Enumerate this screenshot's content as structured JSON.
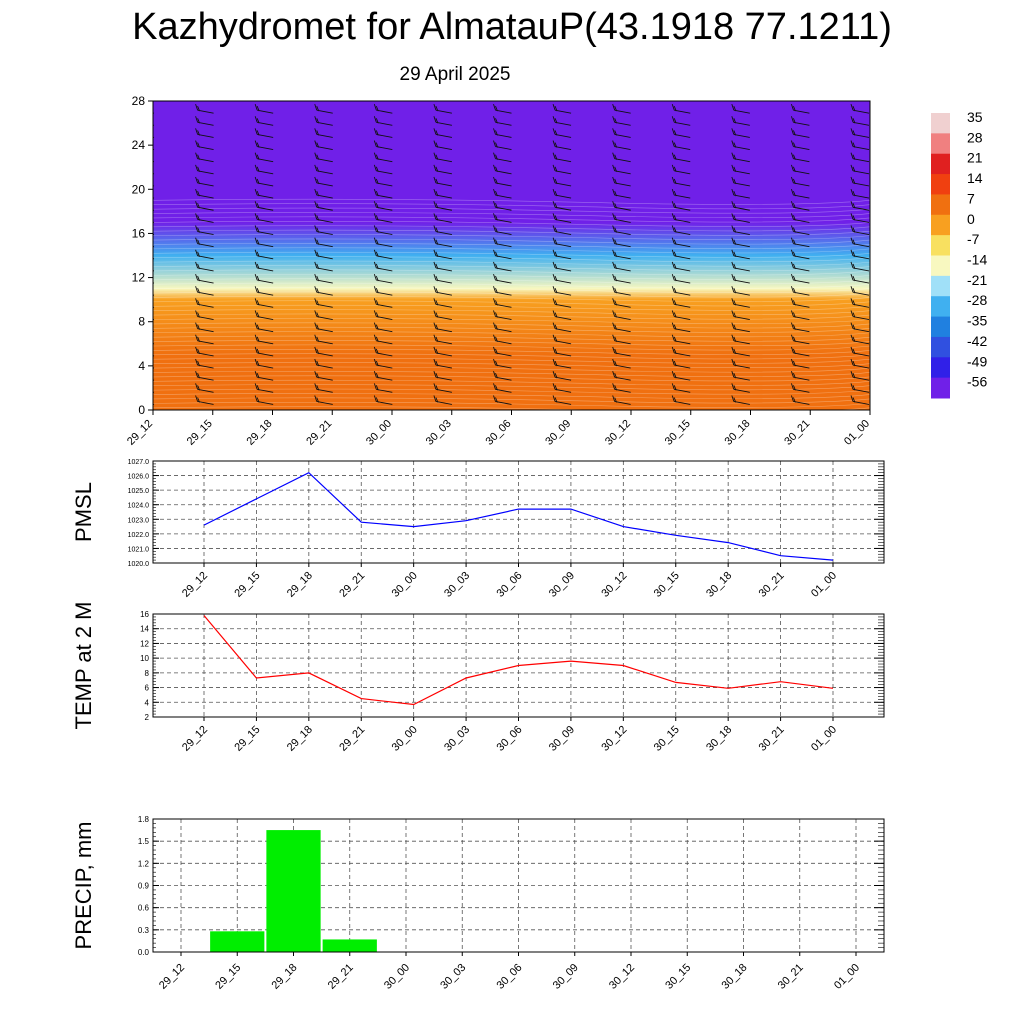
{
  "title": "Kazhydromet for AlmatauP(43.1918 77.1211)",
  "subtitle": "29 April 2025",
  "time_labels": [
    "29_12",
    "29_15",
    "29_18",
    "29_21",
    "30_00",
    "30_03",
    "30_06",
    "30_09",
    "30_12",
    "30_15",
    "30_18",
    "30_21",
    "01_00"
  ],
  "colors": {
    "pmsl_line": "#0000ff",
    "temp_line": "#ff0000",
    "precip_bar": "#00ee00",
    "grid": "#555555"
  },
  "chart_data": [
    {
      "type": "heatmap",
      "name": "vertical cross-section",
      "x": [
        "29_12",
        "29_15",
        "29_18",
        "29_21",
        "30_00",
        "30_03",
        "30_06",
        "30_09",
        "30_12",
        "30_15",
        "30_18",
        "30_21",
        "01_00"
      ],
      "y_ticks": [
        0,
        4,
        8,
        12,
        16,
        20,
        24,
        28
      ],
      "ylim": [
        0,
        28
      ],
      "colorbar": {
        "labels": [
          "35",
          "28",
          "21",
          "14",
          "7",
          "0",
          "-7",
          "-14",
          "-21",
          "-28",
          "-35",
          "-42",
          "-49",
          "-56"
        ],
        "colors": [
          "#f0d0d0",
          "#f08080",
          "#e02020",
          "#f04010",
          "#f07010",
          "#f8a020",
          "#f8e060",
          "#f8f8c0",
          "#a0e0f8",
          "#40b0f0",
          "#2080e0",
          "#3050e0",
          "#3020e8",
          "#7020e8"
        ]
      },
      "layers": [
        {
          "height": 0,
          "value": 10
        },
        {
          "height": 5,
          "value": 8
        },
        {
          "height": 10,
          "value": 3
        },
        {
          "height": 11,
          "value": -14
        },
        {
          "height": 14,
          "value": -30
        },
        {
          "height": 17,
          "value": -56
        },
        {
          "height": 18,
          "value": -56
        },
        {
          "height": 28,
          "value": -60
        }
      ],
      "wind_barbs": true
    },
    {
      "type": "line",
      "ylabel": "PMSL",
      "ylim": [
        1020,
        1027
      ],
      "y_ticks": [
        "1020.0",
        "1021.0",
        "1022.0",
        "1023.0",
        "1024.0",
        "1025.0",
        "1026.0",
        "1027.0"
      ],
      "categories": [
        "29_12",
        "29_15",
        "29_18",
        "29_21",
        "30_00",
        "30_03",
        "30_06",
        "30_09",
        "30_12",
        "30_15",
        "30_18",
        "30_21",
        "01_00"
      ],
      "values": [
        1022.6,
        1024.4,
        1026.2,
        1022.8,
        1022.5,
        1022.9,
        1023.7,
        1023.7,
        1022.5,
        1021.9,
        1021.4,
        1020.5,
        1020.2
      ],
      "grid": true
    },
    {
      "type": "line",
      "ylabel": "TEMP at 2 M",
      "ylim": [
        2,
        16
      ],
      "y_ticks": [
        "2",
        "4",
        "6",
        "8",
        "10",
        "12",
        "14",
        "16"
      ],
      "categories": [
        "29_12",
        "29_15",
        "29_18",
        "29_21",
        "30_00",
        "30_03",
        "30_06",
        "30_09",
        "30_12",
        "30_15",
        "30_18",
        "30_21",
        "01_00"
      ],
      "values": [
        15.8,
        7.3,
        8.0,
        4.5,
        3.7,
        7.3,
        9.0,
        9.6,
        9.0,
        6.7,
        5.9,
        6.8,
        5.9
      ],
      "grid": true
    },
    {
      "type": "bar",
      "ylabel": "PRECIP, mm",
      "ylim": [
        0,
        1.8
      ],
      "y_ticks": [
        "0.0",
        "0.3",
        "0.6",
        "0.9",
        "1.2",
        "1.5",
        "1.8"
      ],
      "categories": [
        "29_12",
        "29_15",
        "29_18",
        "29_21",
        "30_00",
        "30_03",
        "30_06",
        "30_09",
        "30_12",
        "30_15",
        "30_18",
        "30_21",
        "01_00"
      ],
      "values": [
        0,
        0.28,
        1.65,
        0.17,
        0,
        0,
        0,
        0,
        0,
        0,
        0,
        0,
        0
      ],
      "grid": true
    }
  ]
}
